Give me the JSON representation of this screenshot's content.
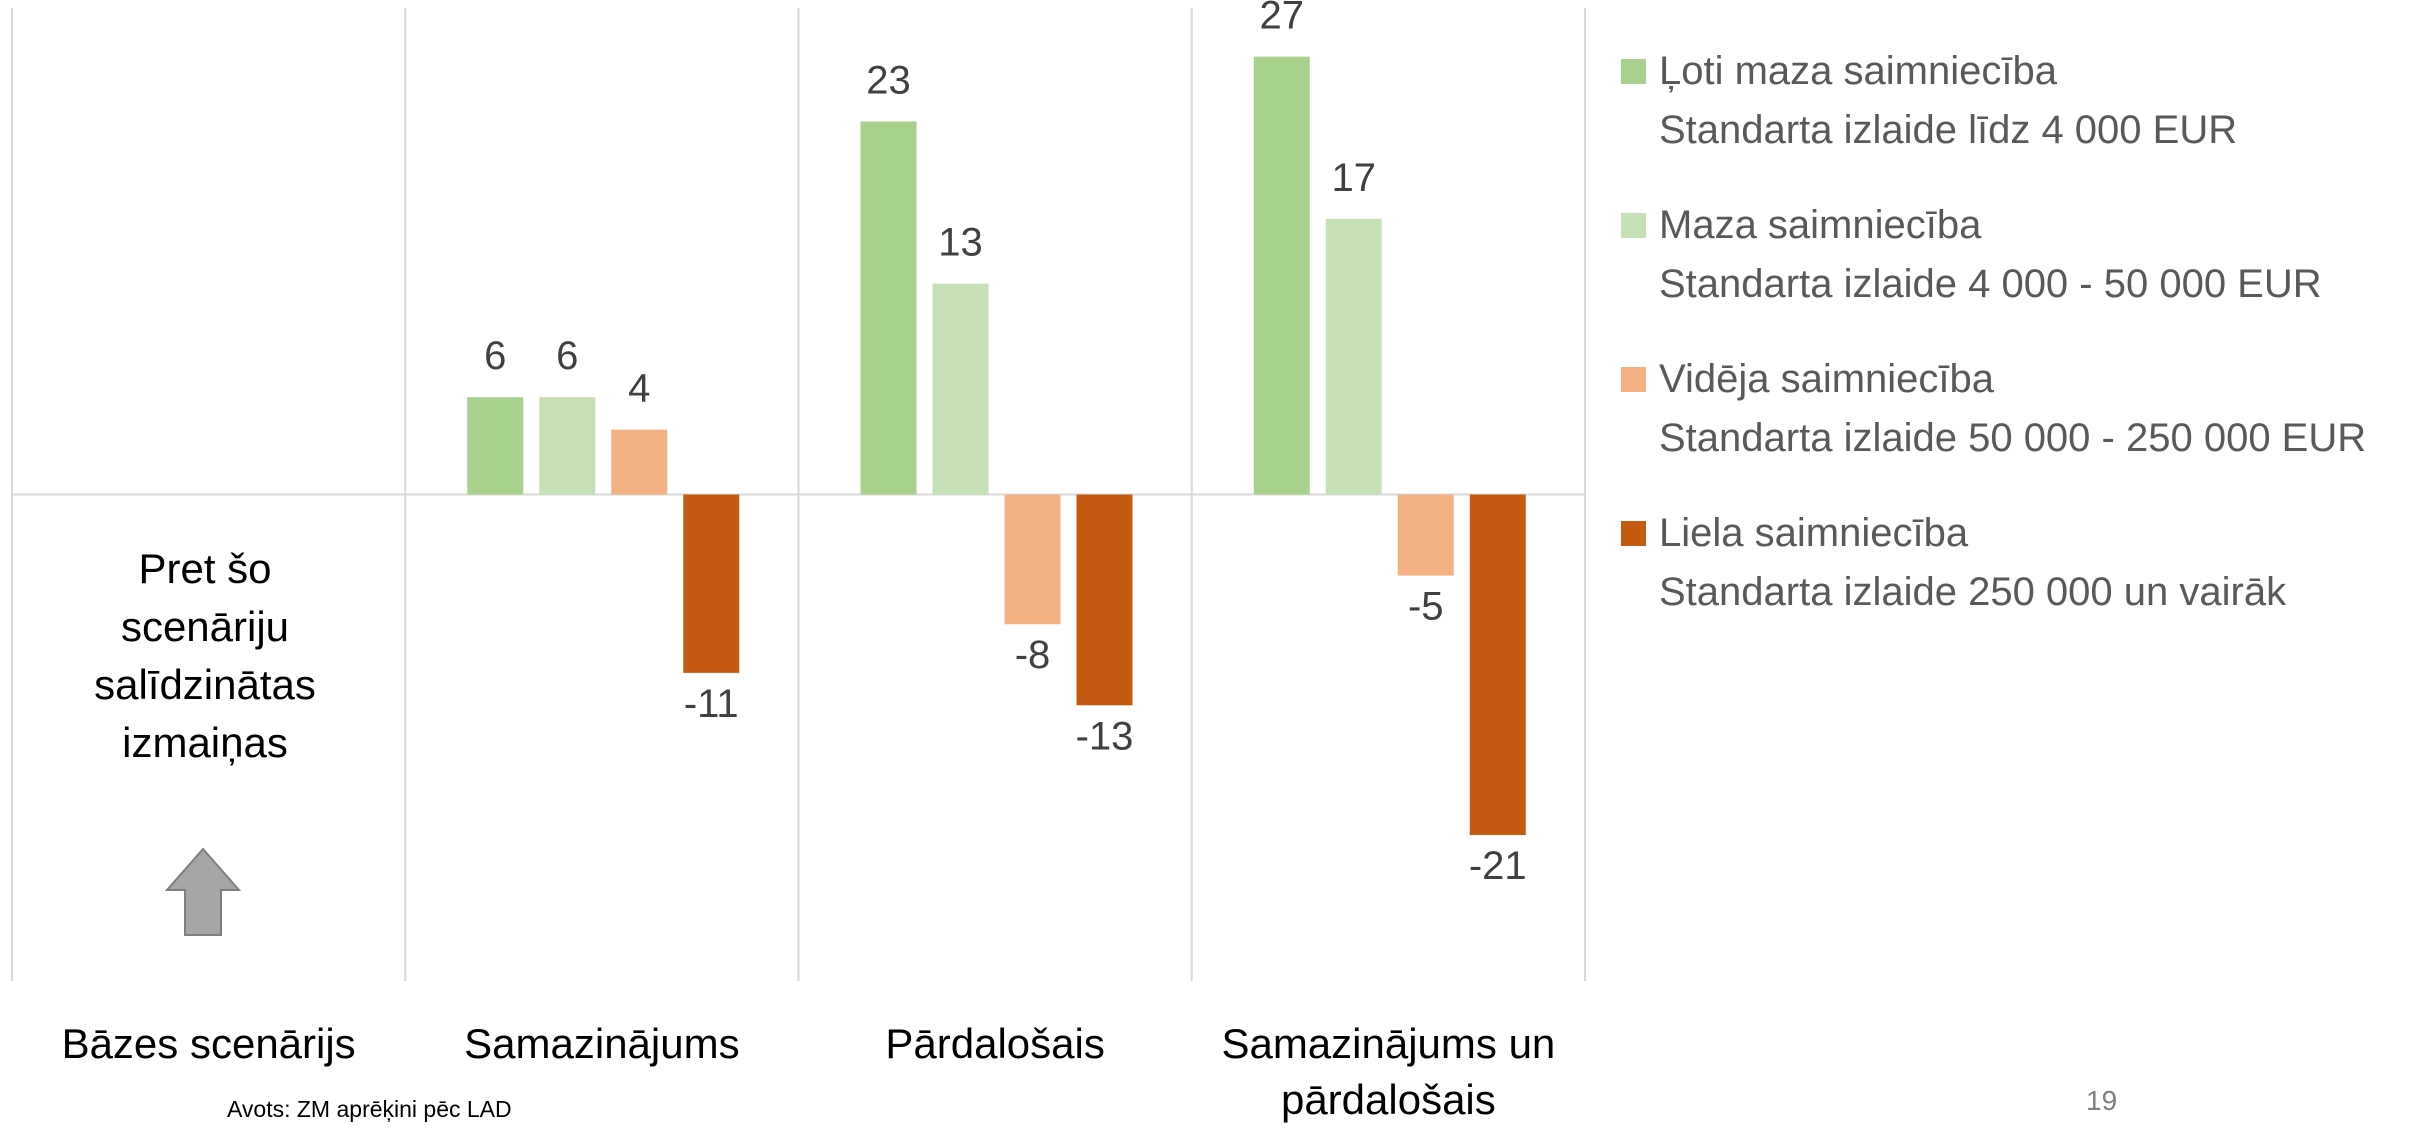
{
  "chart_data": {
    "type": "bar",
    "categories": [
      "Bāzes scenārijs",
      "Samazinājums",
      "Pārdalošais",
      "Samazinājums un pārdalošais"
    ],
    "series": [
      {
        "name": "Ļoti maza saimniecība",
        "detail": "Standarta izlaide līdz 4 000 EUR",
        "color": "#a9d18e",
        "values": [
          null,
          6,
          23,
          27
        ]
      },
      {
        "name": "Maza saimniecība",
        "detail": "Standarta izlaide 4 000 - 50 000 EUR",
        "color": "#c5e0b4",
        "values": [
          null,
          6,
          13,
          17
        ]
      },
      {
        "name": "Vidēja saimniecība",
        "detail": "Standarta izlaide 50 000 - 250 000 EUR",
        "color": "#f4b183",
        "values": [
          null,
          4,
          -8,
          -5
        ]
      },
      {
        "name": "Liela saimniecība",
        "detail": "Standarta izlaide 250 000 un vairāk",
        "color": "#c55a11",
        "values": [
          null,
          -11,
          -13,
          -21
        ]
      }
    ],
    "ylim": [
      -30,
      30
    ],
    "legend": "right",
    "annotation": "Pret šo scenāriju salīdzinātas izmaiņas",
    "source": "Avots: ZM aprēķini pēc LAD",
    "page_number": "19"
  }
}
